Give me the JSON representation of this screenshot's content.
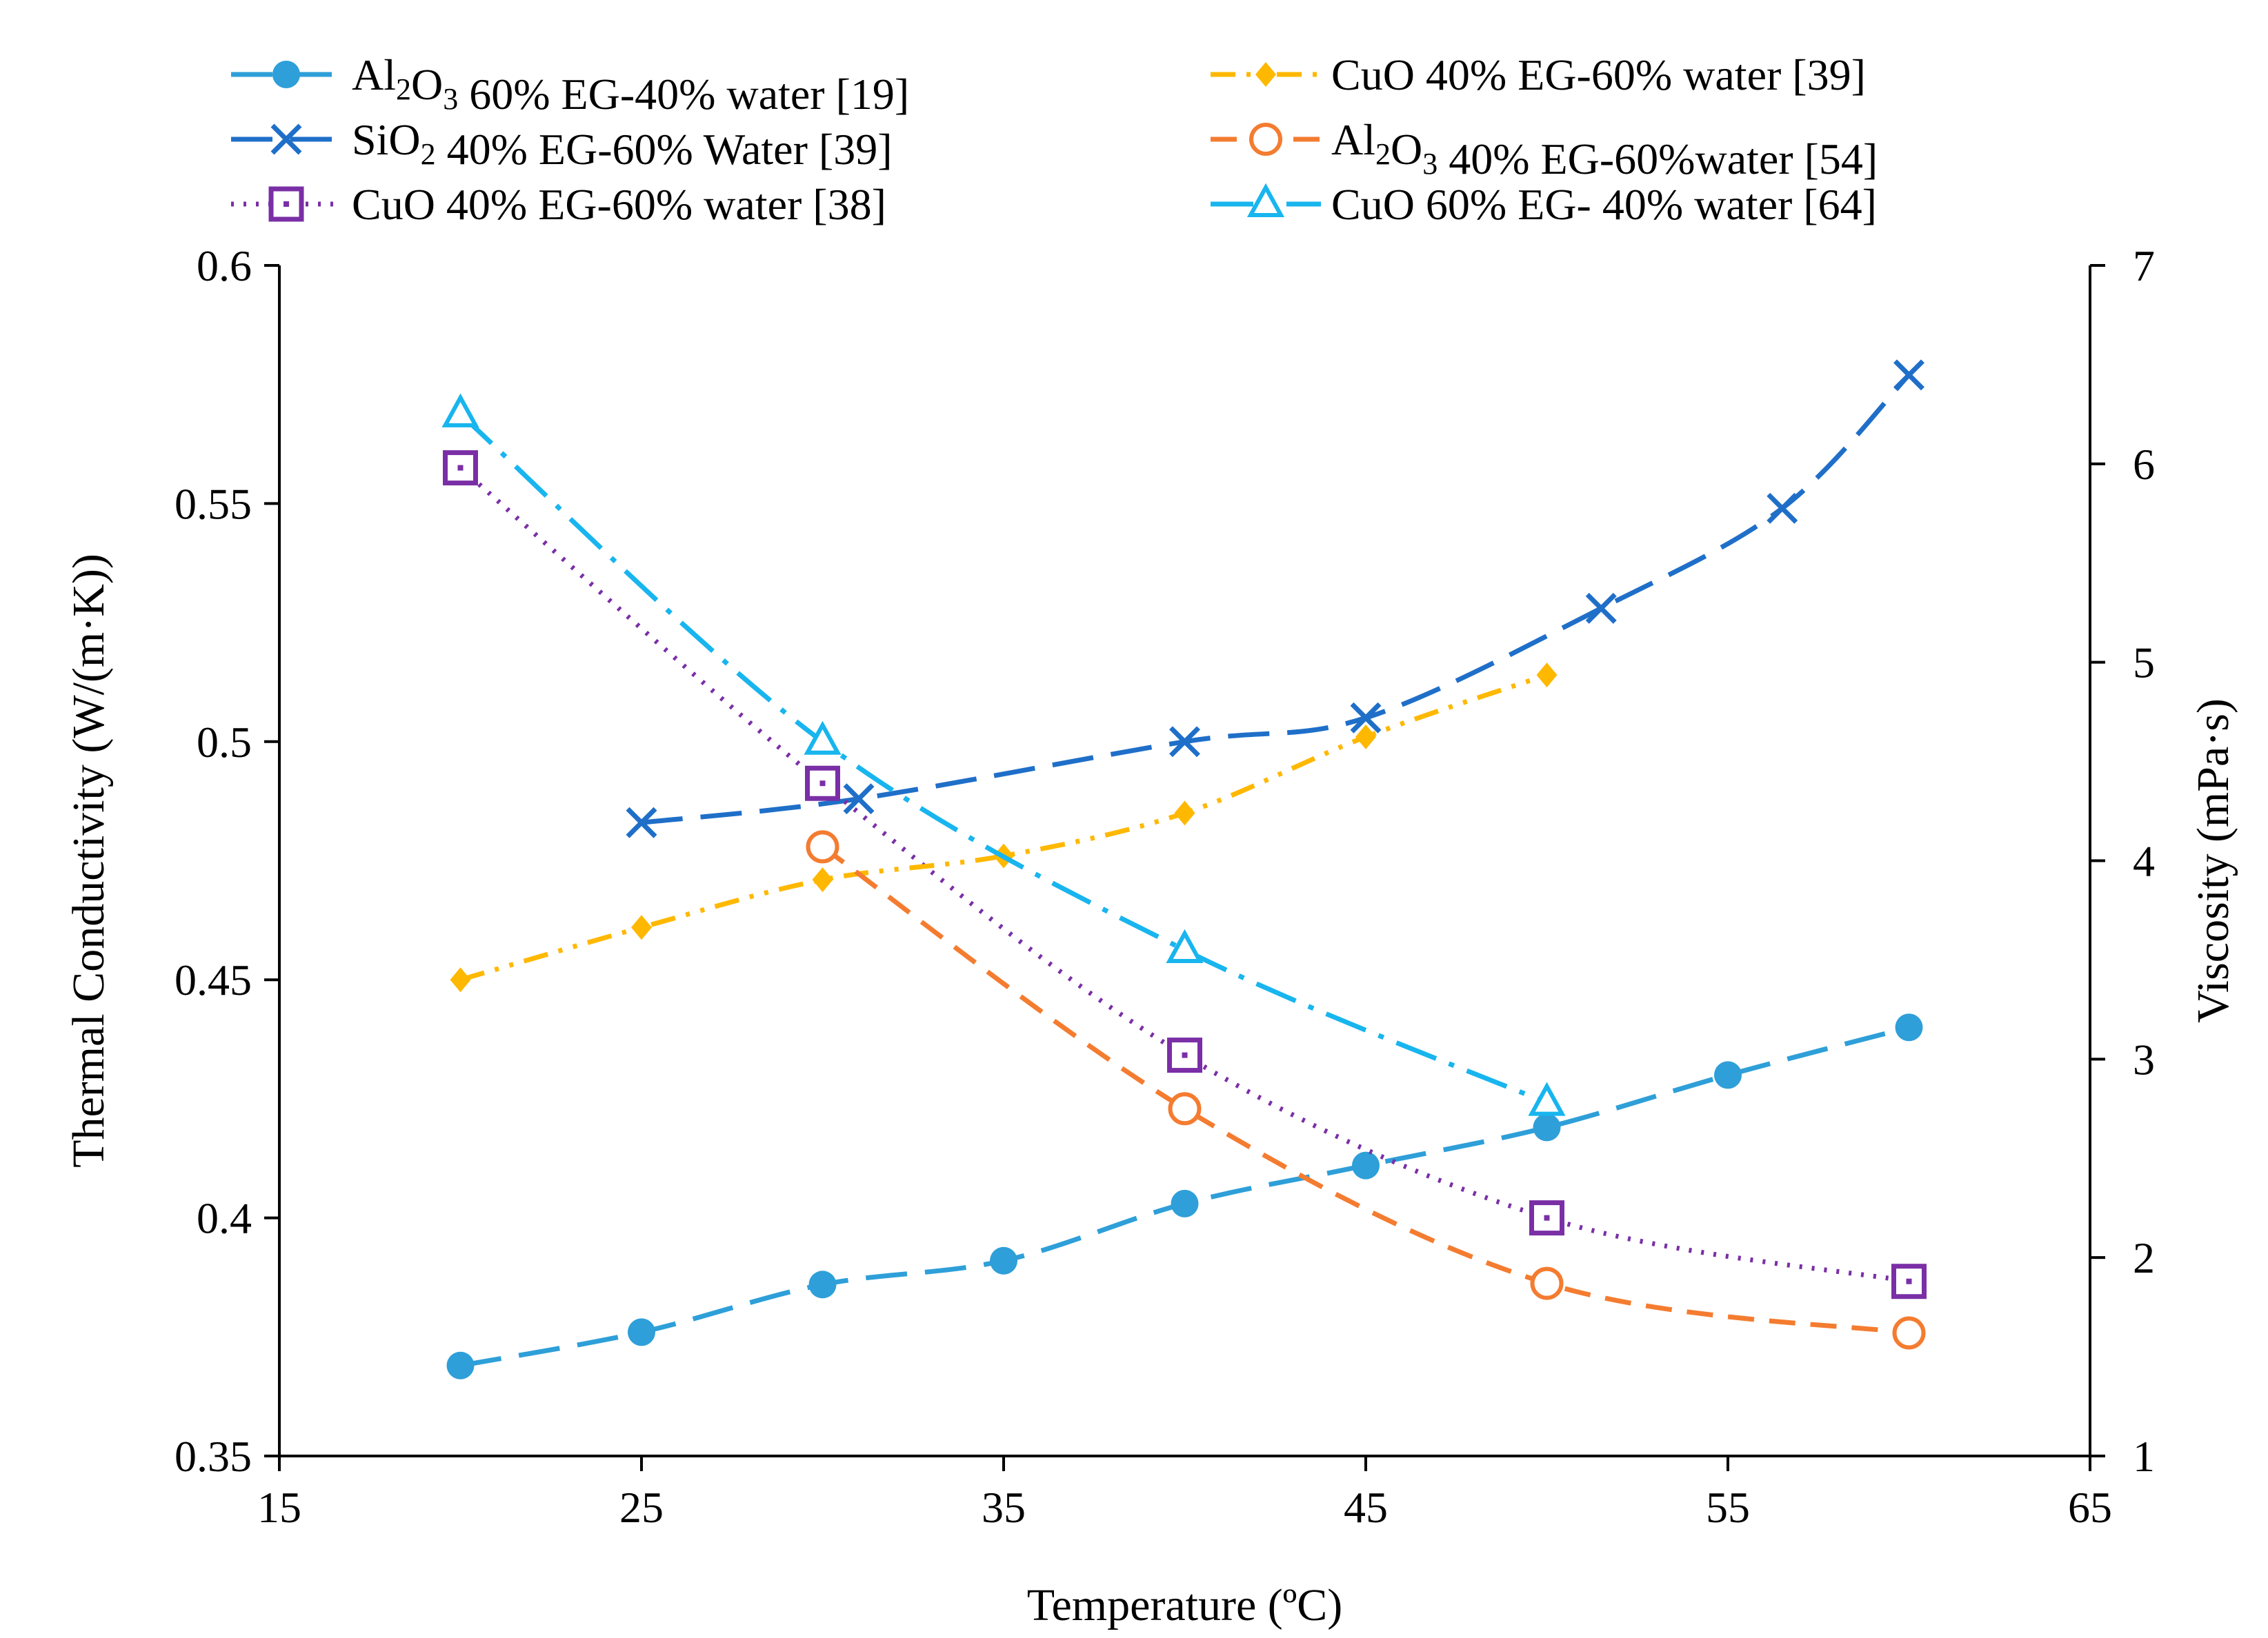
{
  "chart_data": {
    "type": "line",
    "title": "",
    "xlabel": "Temperature (ºC)",
    "ylabel": "Thermal Conductivity (W/(m·K))",
    "y2label": "Viscosity (mPa·s)",
    "xlim": [
      15,
      65
    ],
    "ylim": [
      0.35,
      0.6
    ],
    "y2lim": [
      1,
      7
    ],
    "grid": false,
    "legend_position": "top",
    "x_ticks": [
      "15",
      "25",
      "35",
      "45",
      "55",
      "65"
    ],
    "x_tick_values": [
      15,
      25,
      35,
      45,
      55,
      65
    ],
    "y_ticks": [
      "0.35",
      "0.4",
      "0.45",
      "0.5",
      "0.55",
      "0.6"
    ],
    "y_tick_values": [
      0.35,
      0.4,
      0.45,
      0.5,
      0.55,
      0.6
    ],
    "y2_ticks": [
      "1",
      "2",
      "3",
      "4",
      "5",
      "6",
      "7"
    ],
    "y2_tick_values": [
      1,
      2,
      3,
      4,
      5,
      6,
      7
    ],
    "series": [
      {
        "id": "al2o3-60eg",
        "name": "Al2O3 60% EG-40% water [19]",
        "legend_parts": [
          {
            "t": "Al",
            "s": false
          },
          {
            "t": "2",
            "s": true
          },
          {
            "t": "O",
            "s": false
          },
          {
            "t": "3",
            "s": true
          },
          {
            "t": " 60% EG-40% water [19]",
            "s": false
          }
        ],
        "axis": "left",
        "color": "#2E9FD8",
        "marker": "filled-circle",
        "dash": "long-dash",
        "x": [
          20,
          25,
          30,
          35,
          40,
          45,
          50,
          55,
          60
        ],
        "y": [
          0.369,
          0.376,
          0.386,
          0.391,
          0.403,
          0.411,
          0.419,
          0.43,
          0.44
        ]
      },
      {
        "id": "sio2-40eg",
        "name": "SiO2 40% EG-60% Water [39]",
        "legend_parts": [
          {
            "t": "SiO",
            "s": false
          },
          {
            "t": "2",
            "s": true
          },
          {
            "t": " 40% EG-60% Water [39]",
            "s": false
          }
        ],
        "axis": "left",
        "color": "#1F6FC9",
        "marker": "x",
        "dash": "long-dash",
        "x": [
          25,
          31,
          40,
          45,
          51.5,
          56.5,
          60
        ],
        "y": [
          0.483,
          0.488,
          0.5,
          0.505,
          0.528,
          0.549,
          0.577
        ]
      },
      {
        "id": "cuo-40eg-38",
        "name": "CuO 40% EG-60% water [38]",
        "legend_parts": [
          {
            "t": "CuO 40% EG-60% water [38]",
            "s": false
          }
        ],
        "axis": "right",
        "color": "#7A2FA6",
        "marker": "dotted-square",
        "dash": "dotted",
        "x": [
          20,
          30,
          40,
          50,
          60
        ],
        "y": [
          5.98,
          4.39,
          3.02,
          2.2,
          1.88
        ]
      },
      {
        "id": "cuo-40eg-39",
        "name": "CuO 40% EG-60% water [39]",
        "legend_parts": [
          {
            "t": "CuO 40% EG-60% water [39]",
            "s": false
          }
        ],
        "axis": "left",
        "color": "#FFB800",
        "marker": "filled-diamond",
        "dash": "dash-dot-dot",
        "x": [
          20,
          25,
          30,
          35,
          40,
          45,
          50
        ],
        "y": [
          0.45,
          0.461,
          0.471,
          0.476,
          0.485,
          0.501,
          0.514
        ]
      },
      {
        "id": "al2o3-40eg",
        "name": "Al2O3 40% EG-60%water [54]",
        "legend_parts": [
          {
            "t": "Al",
            "s": false
          },
          {
            "t": "2",
            "s": true
          },
          {
            "t": "O",
            "s": false
          },
          {
            "t": "3",
            "s": true
          },
          {
            "t": " 40% EG-60%water [54]",
            "s": false
          }
        ],
        "axis": "right",
        "color": "#F47C30",
        "marker": "open-circle",
        "dash": "dash",
        "x": [
          30,
          40,
          50,
          60
        ],
        "y": [
          4.07,
          2.75,
          1.87,
          1.62
        ]
      },
      {
        "id": "cuo-60eg",
        "name": "CuO 60% EG- 40% water [64]",
        "legend_parts": [
          {
            "t": "CuO 60% EG- 40% water [64]",
            "s": false
          }
        ],
        "axis": "right",
        "color": "#18B5EE",
        "marker": "open-triangle",
        "dash": "dash-dot",
        "x": [
          20,
          30,
          40,
          50
        ],
        "y": [
          6.25,
          4.6,
          3.55,
          2.78
        ]
      }
    ]
  }
}
